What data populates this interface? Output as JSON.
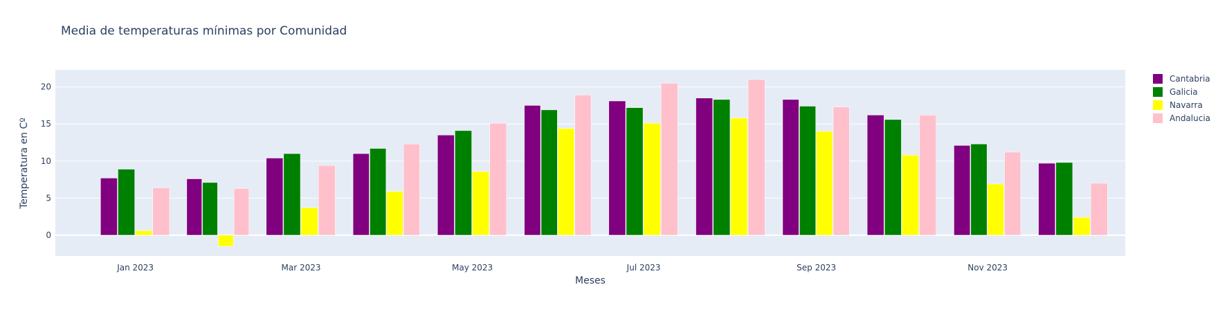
{
  "chart_data": {
    "type": "bar",
    "title": "Media de temperaturas mínimas por Comunidad",
    "xlabel": "Meses",
    "ylabel": "Temperatura en Cº",
    "categories": [
      "2023-01",
      "2023-02",
      "2023-03",
      "2023-04",
      "2023-05",
      "2023-06",
      "2023-07",
      "2023-08",
      "2023-09",
      "2023-10",
      "2023-11",
      "2023-12"
    ],
    "x_tick_labels": [
      "Jan 2023",
      "Mar 2023",
      "May 2023",
      "Jul 2023",
      "Sep 2023",
      "Nov 2023"
    ],
    "x_tick_categories": [
      "2023-01",
      "2023-03",
      "2023-05",
      "2023-07",
      "2023-09",
      "2023-11"
    ],
    "y_ticks": [
      0,
      5,
      10,
      15,
      20
    ],
    "ylim": [
      -2.8,
      22.3
    ],
    "grid": true,
    "legend_position": "top-right",
    "plot_background": "#e5ecf6",
    "series": [
      {
        "name": "Cantabria",
        "color": "#800080",
        "values": [
          7.7,
          7.6,
          10.4,
          11.0,
          13.5,
          17.5,
          18.1,
          18.5,
          18.3,
          16.2,
          12.1,
          9.7
        ]
      },
      {
        "name": "Galicia",
        "color": "#008000",
        "values": [
          8.9,
          7.1,
          11.0,
          11.7,
          14.1,
          16.9,
          17.2,
          18.3,
          17.4,
          15.6,
          12.3,
          9.8
        ]
      },
      {
        "name": "Navarra",
        "color": "#ffff00",
        "values": [
          0.6,
          -1.5,
          3.7,
          5.9,
          8.6,
          14.4,
          15.1,
          15.8,
          14.0,
          10.8,
          6.9,
          2.4
        ]
      },
      {
        "name": "Andalucia",
        "color": "#ffc0cb",
        "values": [
          6.4,
          6.3,
          9.4,
          12.3,
          15.1,
          18.9,
          20.5,
          21.0,
          17.3,
          16.2,
          11.2,
          7.0
        ]
      }
    ]
  }
}
